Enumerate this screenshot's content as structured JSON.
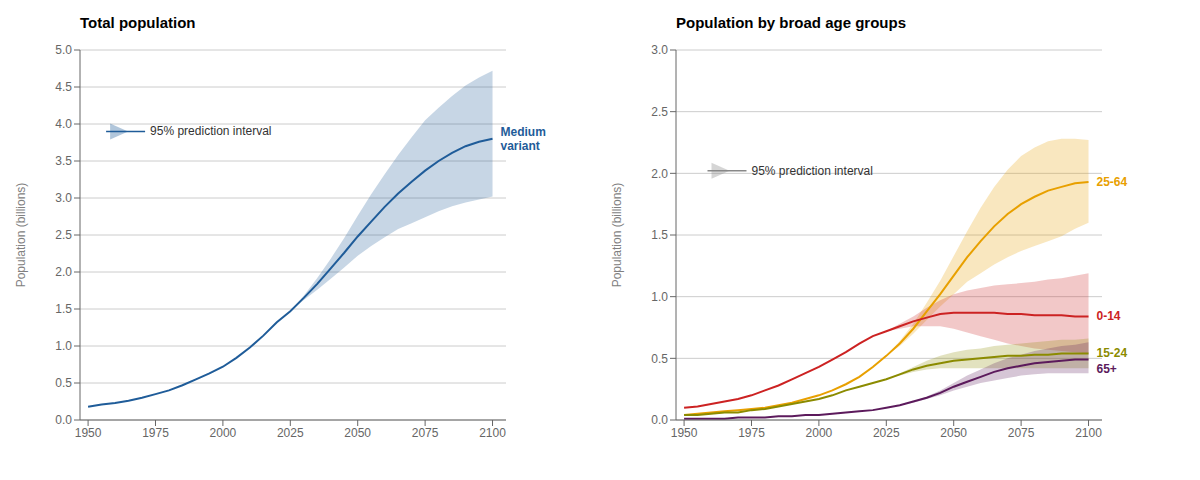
{
  "chart_data": [
    {
      "type": "line",
      "title": "Total population",
      "y_label": "Population (billions)",
      "x": [
        1950,
        1955,
        1960,
        1965,
        1970,
        1975,
        1980,
        1985,
        1990,
        1995,
        2000,
        2005,
        2010,
        2015,
        2020,
        2025,
        2030,
        2035,
        2040,
        2045,
        2050,
        2055,
        2060,
        2065,
        2070,
        2075,
        2080,
        2085,
        2090,
        2095,
        2100
      ],
      "xlim": [
        1947,
        2105
      ],
      "xticks": [
        1950,
        1975,
        2000,
        2025,
        2050,
        2075,
        2100
      ],
      "ylim": [
        0,
        5
      ],
      "yticks": [
        {
          "value": 0,
          "label": "0.0"
        },
        0.5,
        {
          "value": 1,
          "label": "1.0"
        },
        1.5,
        {
          "value": 2,
          "label": "2.0"
        },
        2.5,
        {
          "value": 3,
          "label": "3.0"
        },
        3.5,
        {
          "value": 4,
          "label": "4.0"
        },
        4.5,
        {
          "value": 5,
          "label": "5.0"
        }
      ],
      "grid": true,
      "series": [
        {
          "name": "Medium\nvariant",
          "color": "#1f5c99",
          "values": [
            0.18,
            0.21,
            0.23,
            0.26,
            0.3,
            0.35,
            0.4,
            0.47,
            0.55,
            0.63,
            0.72,
            0.84,
            0.98,
            1.14,
            1.32,
            1.47,
            1.65,
            1.84,
            2.05,
            2.26,
            2.48,
            2.68,
            2.88,
            3.06,
            3.22,
            3.37,
            3.5,
            3.61,
            3.7,
            3.76,
            3.8
          ],
          "upper": [
            0.18,
            0.21,
            0.23,
            0.26,
            0.3,
            0.35,
            0.4,
            0.47,
            0.55,
            0.63,
            0.72,
            0.84,
            0.98,
            1.14,
            1.32,
            1.47,
            1.68,
            1.92,
            2.18,
            2.46,
            2.76,
            3.05,
            3.32,
            3.58,
            3.82,
            4.05,
            4.22,
            4.38,
            4.52,
            4.63,
            4.72
          ],
          "lower": [
            0.18,
            0.21,
            0.23,
            0.26,
            0.3,
            0.35,
            0.4,
            0.47,
            0.55,
            0.63,
            0.72,
            0.84,
            0.98,
            1.14,
            1.32,
            1.47,
            1.62,
            1.76,
            1.91,
            2.06,
            2.22,
            2.35,
            2.47,
            2.58,
            2.66,
            2.74,
            2.82,
            2.89,
            2.94,
            2.98,
            3.02
          ]
        }
      ],
      "annotations": [
        {
          "text": "95% prediction interval",
          "x": 1973,
          "y": 3.9
        }
      ]
    },
    {
      "type": "line",
      "title": "Population by broad age groups",
      "y_label": "Population (billions)",
      "x": [
        1950,
        1955,
        1960,
        1965,
        1970,
        1975,
        1980,
        1985,
        1990,
        1995,
        2000,
        2005,
        2010,
        2015,
        2020,
        2025,
        2030,
        2035,
        2040,
        2045,
        2050,
        2055,
        2060,
        2065,
        2070,
        2075,
        2080,
        2085,
        2090,
        2095,
        2100
      ],
      "xlim": [
        1947,
        2105
      ],
      "xticks": [
        1950,
        1975,
        2000,
        2025,
        2050,
        2075,
        2100
      ],
      "ylim": [
        0,
        3
      ],
      "yticks": [
        {
          "value": 0,
          "label": "0.0"
        },
        0.5,
        {
          "value": 1,
          "label": "1.0"
        },
        1.5,
        {
          "value": 2,
          "label": "2.0"
        },
        2.5,
        {
          "value": 3,
          "label": "3.0"
        }
      ],
      "grid": true,
      "series": [
        {
          "name": "25-64",
          "color": "#e8a000",
          "values": [
            0.04,
            0.05,
            0.06,
            0.07,
            0.08,
            0.09,
            0.1,
            0.12,
            0.14,
            0.17,
            0.2,
            0.24,
            0.29,
            0.35,
            0.43,
            0.52,
            0.62,
            0.74,
            0.88,
            1.02,
            1.17,
            1.32,
            1.45,
            1.57,
            1.67,
            1.75,
            1.81,
            1.86,
            1.89,
            1.92,
            1.93
          ],
          "upper": [
            0.04,
            0.05,
            0.06,
            0.07,
            0.08,
            0.09,
            0.1,
            0.12,
            0.14,
            0.17,
            0.2,
            0.24,
            0.29,
            0.35,
            0.43,
            0.52,
            0.64,
            0.78,
            0.95,
            1.13,
            1.33,
            1.53,
            1.72,
            1.89,
            2.03,
            2.14,
            2.21,
            2.26,
            2.28,
            2.28,
            2.27
          ],
          "lower": [
            0.04,
            0.05,
            0.06,
            0.07,
            0.08,
            0.09,
            0.1,
            0.12,
            0.14,
            0.17,
            0.2,
            0.24,
            0.29,
            0.35,
            0.43,
            0.52,
            0.6,
            0.7,
            0.81,
            0.92,
            1.02,
            1.12,
            1.19,
            1.26,
            1.32,
            1.37,
            1.41,
            1.45,
            1.49,
            1.55,
            1.6
          ]
        },
        {
          "name": "0-14",
          "color": "#cc2222",
          "values": [
            0.1,
            0.11,
            0.13,
            0.15,
            0.17,
            0.2,
            0.24,
            0.28,
            0.33,
            0.38,
            0.43,
            0.49,
            0.55,
            0.62,
            0.68,
            0.72,
            0.76,
            0.8,
            0.83,
            0.86,
            0.87,
            0.87,
            0.87,
            0.87,
            0.86,
            0.86,
            0.85,
            0.85,
            0.85,
            0.84,
            0.84
          ],
          "upper": [
            0.1,
            0.11,
            0.13,
            0.15,
            0.17,
            0.2,
            0.24,
            0.28,
            0.33,
            0.38,
            0.43,
            0.49,
            0.55,
            0.62,
            0.68,
            0.72,
            0.78,
            0.84,
            0.91,
            0.97,
            1.02,
            1.05,
            1.07,
            1.09,
            1.1,
            1.11,
            1.12,
            1.14,
            1.15,
            1.17,
            1.19
          ],
          "lower": [
            0.1,
            0.11,
            0.13,
            0.15,
            0.17,
            0.2,
            0.24,
            0.28,
            0.33,
            0.38,
            0.43,
            0.49,
            0.55,
            0.62,
            0.68,
            0.72,
            0.74,
            0.76,
            0.76,
            0.76,
            0.74,
            0.71,
            0.68,
            0.65,
            0.62,
            0.6,
            0.58,
            0.57,
            0.56,
            0.55,
            0.54
          ]
        },
        {
          "name": "15-24",
          "color": "#8b8b00",
          "values": [
            0.04,
            0.04,
            0.05,
            0.06,
            0.06,
            0.08,
            0.09,
            0.11,
            0.13,
            0.15,
            0.17,
            0.2,
            0.24,
            0.27,
            0.3,
            0.33,
            0.37,
            0.41,
            0.44,
            0.46,
            0.48,
            0.49,
            0.5,
            0.51,
            0.52,
            0.52,
            0.53,
            0.53,
            0.54,
            0.54,
            0.54
          ],
          "upper": [
            0.04,
            0.04,
            0.05,
            0.06,
            0.06,
            0.08,
            0.09,
            0.11,
            0.13,
            0.15,
            0.17,
            0.2,
            0.24,
            0.27,
            0.3,
            0.33,
            0.38,
            0.43,
            0.48,
            0.52,
            0.55,
            0.57,
            0.58,
            0.6,
            0.61,
            0.62,
            0.63,
            0.64,
            0.65,
            0.65,
            0.66
          ],
          "lower": [
            0.04,
            0.04,
            0.05,
            0.06,
            0.06,
            0.08,
            0.09,
            0.11,
            0.13,
            0.15,
            0.17,
            0.2,
            0.24,
            0.27,
            0.3,
            0.33,
            0.36,
            0.39,
            0.41,
            0.42,
            0.42,
            0.42,
            0.42,
            0.42,
            0.42,
            0.42,
            0.42,
            0.42,
            0.42,
            0.42,
            0.42
          ]
        },
        {
          "name": "65+",
          "color": "#5c1a5c",
          "values": [
            0.01,
            0.01,
            0.01,
            0.01,
            0.02,
            0.02,
            0.02,
            0.03,
            0.03,
            0.04,
            0.04,
            0.05,
            0.06,
            0.07,
            0.08,
            0.1,
            0.12,
            0.15,
            0.18,
            0.22,
            0.27,
            0.31,
            0.35,
            0.39,
            0.42,
            0.44,
            0.46,
            0.47,
            0.48,
            0.49,
            0.49
          ],
          "upper": [
            0.01,
            0.01,
            0.01,
            0.01,
            0.02,
            0.02,
            0.02,
            0.03,
            0.03,
            0.04,
            0.04,
            0.05,
            0.06,
            0.07,
            0.08,
            0.1,
            0.12,
            0.15,
            0.19,
            0.24,
            0.3,
            0.36,
            0.41,
            0.46,
            0.5,
            0.53,
            0.56,
            0.58,
            0.6,
            0.61,
            0.63
          ],
          "lower": [
            0.01,
            0.01,
            0.01,
            0.01,
            0.02,
            0.02,
            0.02,
            0.03,
            0.03,
            0.04,
            0.04,
            0.05,
            0.06,
            0.07,
            0.08,
            0.1,
            0.12,
            0.14,
            0.17,
            0.2,
            0.24,
            0.27,
            0.3,
            0.32,
            0.34,
            0.36,
            0.37,
            0.38,
            0.38,
            0.38,
            0.38
          ]
        }
      ],
      "annotations": [
        {
          "text": "95% prediction interval",
          "x": 1975,
          "y": 2.02
        }
      ]
    }
  ]
}
